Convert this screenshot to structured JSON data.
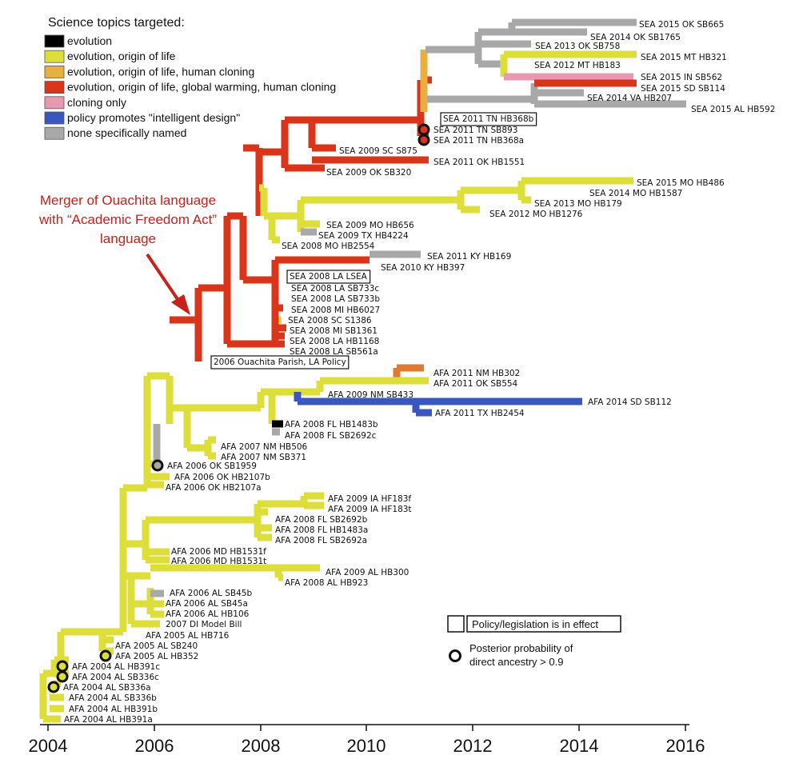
{
  "legend": {
    "title": "Science topics targeted:",
    "items": [
      {
        "label": "evolution",
        "color": "#000000"
      },
      {
        "label": "evolution, origin of life",
        "color": "#dede3a"
      },
      {
        "label": "evolution, origin of life, human cloning",
        "color": "#e8b040"
      },
      {
        "label": "evolution, origin of life, global warming, human cloning",
        "color": "#d9351a"
      },
      {
        "label": "cloning only",
        "color": "#e898b0"
      },
      {
        "label": "policy promotes \"intelligent design\"",
        "color": "#3a57c0"
      },
      {
        "label": "none specifically named",
        "color": "#a8a8a8"
      }
    ]
  },
  "annotation": {
    "lines": [
      "Merger of Ouachita language",
      "with “Academic Freedom Act”",
      "language"
    ]
  },
  "key": {
    "in_effect": "Policy/legislation is in effect",
    "ancestry_line1": "Posterior probability of",
    "ancestry_line2": "direct ancestry > 0.9"
  },
  "axis": {
    "ticks": [
      "2004",
      "2006",
      "2008",
      "2010",
      "2012",
      "2014",
      "2016"
    ]
  },
  "leaves": [
    {
      "label": "SEA 2015 OK SB665",
      "color": "#a8a8a8"
    },
    {
      "label": "SEA 2014 OK SB1765",
      "color": "#a8a8a8"
    },
    {
      "label": "SEA 2013 OK SB758",
      "color": "#a8a8a8"
    },
    {
      "label": "SEA 2015 MT HB321",
      "color": "#dede3a"
    },
    {
      "label": "SEA 2012 MT HB183",
      "color": "#dede3a"
    },
    {
      "label": "SEA 2015 IN SB562",
      "color": "#e898b0"
    },
    {
      "label": "SEA 2015 SD SB114",
      "color": "#d9351a"
    },
    {
      "label": "SEA 2014 VA HB207",
      "color": "#a8a8a8"
    },
    {
      "label": "SEA 2015 AL HB592",
      "color": "#a8a8a8"
    },
    {
      "label": "SEA 2011 TN HB368b",
      "color": "#d9351a",
      "boxed": true
    },
    {
      "label": "SEA 2011 TN SB893",
      "color": "#d9351a",
      "circle": true
    },
    {
      "label": "SEA 2011 TN HB368a",
      "color": "#d9351a",
      "circle": true
    },
    {
      "label": "SEA 2009 SC S875",
      "color": "#d9351a"
    },
    {
      "label": "SEA 2011 OK HB1551",
      "color": "#d9351a"
    },
    {
      "label": "SEA 2009 OK SB320",
      "color": "#d9351a"
    },
    {
      "label": "SEA 2015 MO HB486",
      "color": "#dede3a"
    },
    {
      "label": "SEA 2014 MO HB1587",
      "color": "#dede3a"
    },
    {
      "label": "SEA 2013 MO HB179",
      "color": "#dede3a"
    },
    {
      "label": "SEA 2012 MO HB1276",
      "color": "#dede3a"
    },
    {
      "label": "SEA 2009 MO HB656",
      "color": "#dede3a"
    },
    {
      "label": "SEA 2009 TX HB4224",
      "color": "#a8a8a8"
    },
    {
      "label": "SEA 2008 MO HB2554",
      "color": "#dede3a"
    },
    {
      "label": "SEA 2011 KY HB169",
      "color": "#a8a8a8"
    },
    {
      "label": "SEA 2010 KY HB397",
      "color": "#d9351a"
    },
    {
      "label": "SEA 2008 LA LSEA",
      "color": "#d9351a",
      "boxed": true
    },
    {
      "label": "SEA 2008 LA SB733c",
      "color": "#a8a8a8"
    },
    {
      "label": "SEA 2008 LA SB733b",
      "color": "#a8a8a8"
    },
    {
      "label": "SEA 2008 MI HB6027",
      "color": "#d9351a"
    },
    {
      "label": "SEA 2008 SC S1386",
      "color": "#dede3a"
    },
    {
      "label": "SEA 2008 MI SB1361",
      "color": "#d9351a"
    },
    {
      "label": "SEA 2008 LA HB1168",
      "color": "#d9351a"
    },
    {
      "label": "SEA 2008 LA SB561a",
      "color": "#d9351a"
    },
    {
      "label": "2006 Ouachita Parish, LA Policy",
      "color": "#d9351a",
      "boxed": true
    },
    {
      "label": "AFA 2011 NM HB302",
      "color": "#e07a30"
    },
    {
      "label": "AFA 2011 OK SB554",
      "color": "#dede3a"
    },
    {
      "label": "AFA 2009 NM SB433",
      "color": "#dede3a"
    },
    {
      "label": "AFA 2014 SD SB112",
      "color": "#3a57c0"
    },
    {
      "label": "AFA 2011 TX HB2454",
      "color": "#3a57c0"
    },
    {
      "label": "AFA 2008 FL HB1483b",
      "color": "#000000"
    },
    {
      "label": "AFA 2008 FL SB2692c",
      "color": "#a8a8a8"
    },
    {
      "label": "AFA 2007 NM HB506",
      "color": "#dede3a"
    },
    {
      "label": "AFA 2007 NM SB371",
      "color": "#dede3a"
    },
    {
      "label": "AFA 2006 OK SB1959",
      "color": "#a8a8a8",
      "circle": true
    },
    {
      "label": "AFA 2006 OK HB2107b",
      "color": "#dede3a"
    },
    {
      "label": "AFA 2006 OK HB2107a",
      "color": "#dede3a"
    },
    {
      "label": "AFA 2009 IA HF183f",
      "color": "#dede3a"
    },
    {
      "label": "AFA 2009 IA HF183t",
      "color": "#dede3a"
    },
    {
      "label": "AFA 2008 FL SB2692b",
      "color": "#dede3a"
    },
    {
      "label": "AFA 2008 FL HB1483a",
      "color": "#dede3a"
    },
    {
      "label": "AFA 2008 FL SB2692a",
      "color": "#dede3a"
    },
    {
      "label": "AFA 2006 MD HB1531f",
      "color": "#dede3a"
    },
    {
      "label": "AFA 2006 MD HB1531t",
      "color": "#dede3a"
    },
    {
      "label": "AFA 2009 AL HB300",
      "color": "#dede3a"
    },
    {
      "label": "AFA 2008 AL HB923",
      "color": "#dede3a"
    },
    {
      "label": "AFA 2006 AL SB45b",
      "color": "#a8a8a8"
    },
    {
      "label": "AFA 2006 AL SB45a",
      "color": "#dede3a"
    },
    {
      "label": "AFA 2006 AL HB106",
      "color": "#dede3a"
    },
    {
      "label": "2007 DI Model Bill",
      "color": "#dede3a"
    },
    {
      "label": "AFA 2005 AL HB716",
      "color": "#dede3a"
    },
    {
      "label": "AFA 2005 AL SB240",
      "color": "#dede3a"
    },
    {
      "label": "AFA 2005 AL HB352",
      "color": "#dede3a",
      "circle": true
    },
    {
      "label": "AFA 2004 AL HB391c",
      "color": "#dede3a",
      "circle": true
    },
    {
      "label": "AFA 2004 AL SB336c",
      "color": "#dede3a",
      "circle": true
    },
    {
      "label": "AFA 2004 AL SB336a",
      "color": "#dede3a",
      "circle": true
    },
    {
      "label": "AFA 2004 AL SB336b",
      "color": "#dede3a"
    },
    {
      "label": "AFA 2004 AL HB391b",
      "color": "#dede3a"
    },
    {
      "label": "AFA 2004 AL HB391a",
      "color": "#dede3a"
    }
  ]
}
